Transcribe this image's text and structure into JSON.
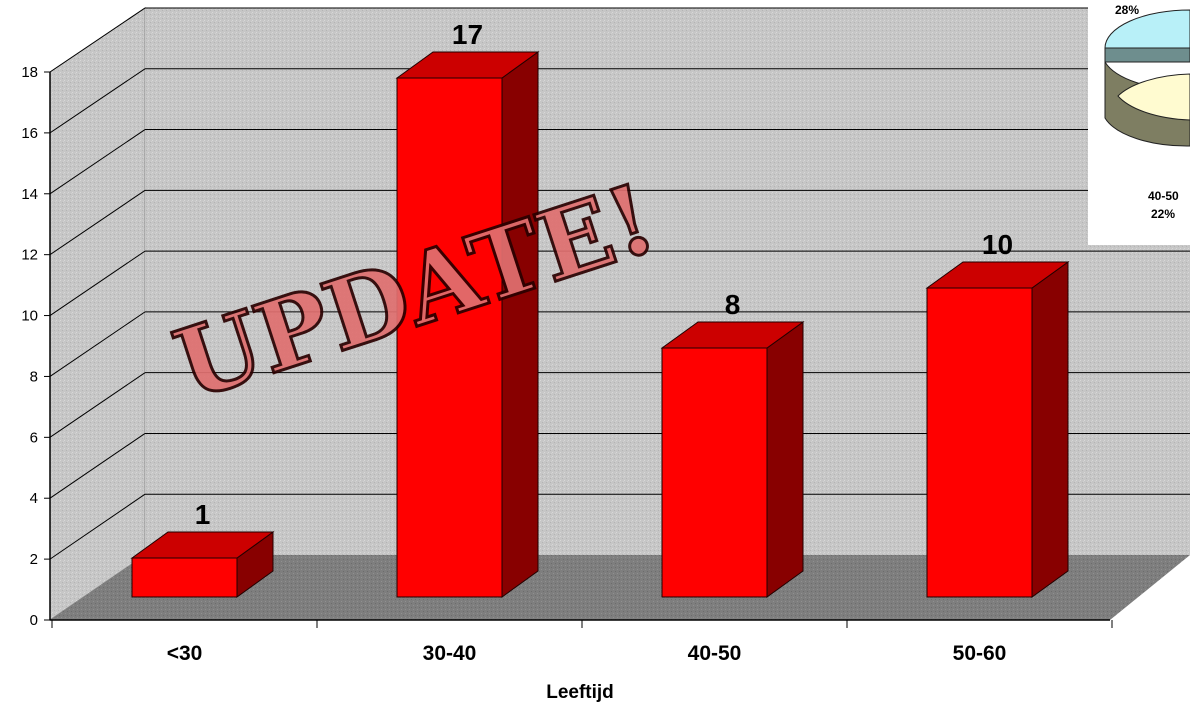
{
  "chart_data": {
    "type": "bar",
    "categories": [
      "<30",
      "30-40",
      "40-50",
      "50-60"
    ],
    "values": [
      1,
      17,
      8,
      10
    ],
    "title": "",
    "xlabel": "Leeftijd",
    "ylabel": "",
    "ylim": [
      0,
      18
    ],
    "yticks": [
      "0",
      "2",
      "4",
      "6",
      "8",
      "10",
      "12",
      "14",
      "16",
      "18"
    ],
    "grid": true,
    "three_d": true,
    "colors": {
      "bar": "#ff0000",
      "bar_top": "#cc0000",
      "bar_side": "#880000",
      "wall": "#c4c4c4",
      "floor": "#808080"
    }
  },
  "overlay": {
    "stamp_text": "UPDATE!"
  },
  "inset_pie": {
    "labels": [
      "28%",
      "40-50",
      "22%"
    ]
  }
}
